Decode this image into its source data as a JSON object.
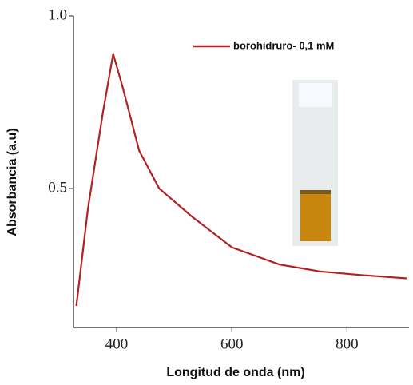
{
  "chart_data": {
    "type": "line",
    "x_label": "Longitud de onda (nm)",
    "y_label": "Absorbancia (a.u)",
    "x": [
      330,
      350,
      376,
      394,
      411,
      439,
      474,
      530,
      600,
      683,
      753,
      822,
      904
    ],
    "series": [
      {
        "name": "borohidruro- 0,1 mM",
        "color": "#b22222",
        "values": [
          0.16,
          0.44,
          0.72,
          0.89,
          0.79,
          0.61,
          0.5,
          0.42,
          0.33,
          0.28,
          0.26,
          0.25,
          0.24
        ]
      }
    ],
    "xlim": [
      325,
      905
    ],
    "ylim": [
      0.1,
      1.0
    ],
    "xticks": [
      400,
      600,
      800
    ],
    "yticks": [
      0.5,
      {
        "value": 1,
        "label": "1.0"
      }
    ],
    "legend": "top-right"
  }
}
